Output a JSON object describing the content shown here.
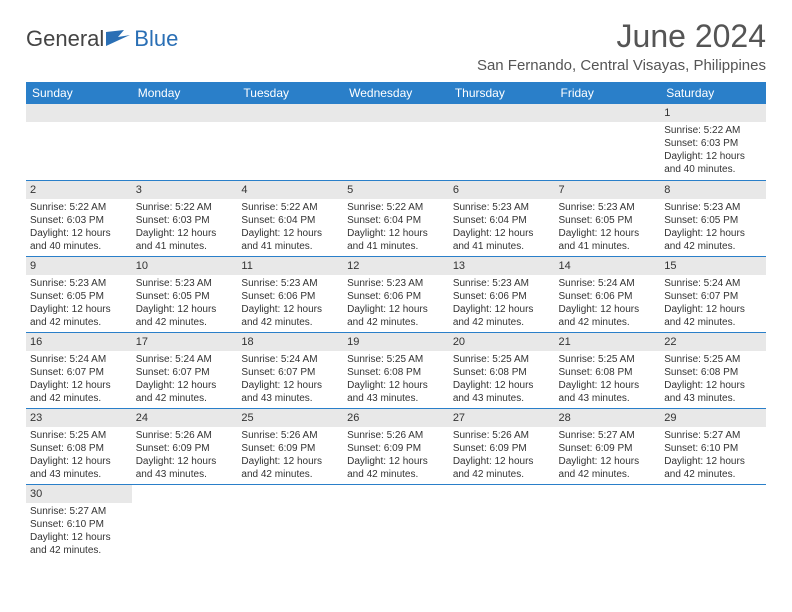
{
  "logo": {
    "textA": "General",
    "textB": "Blue"
  },
  "header": {
    "monthTitle": "June 2024",
    "location": "San Fernando, Central Visayas, Philippines"
  },
  "colors": {
    "headerBg": "#2a7fc9",
    "headerText": "#ffffff",
    "dayNumBg": "#e8e8e8",
    "borderColor": "#2a7fc9",
    "logoBlue": "#2a6fb5",
    "textColor": "#333333"
  },
  "weekdays": [
    "Sunday",
    "Monday",
    "Tuesday",
    "Wednesday",
    "Thursday",
    "Friday",
    "Saturday"
  ],
  "grid": {
    "rows": 6,
    "cols": 7,
    "firstDayCol": 6,
    "daysInMonth": 30
  },
  "days": {
    "1": {
      "sunrise": "5:22 AM",
      "sunset": "6:03 PM",
      "daylight": "12 hours and 40 minutes."
    },
    "2": {
      "sunrise": "5:22 AM",
      "sunset": "6:03 PM",
      "daylight": "12 hours and 40 minutes."
    },
    "3": {
      "sunrise": "5:22 AM",
      "sunset": "6:03 PM",
      "daylight": "12 hours and 41 minutes."
    },
    "4": {
      "sunrise": "5:22 AM",
      "sunset": "6:04 PM",
      "daylight": "12 hours and 41 minutes."
    },
    "5": {
      "sunrise": "5:22 AM",
      "sunset": "6:04 PM",
      "daylight": "12 hours and 41 minutes."
    },
    "6": {
      "sunrise": "5:23 AM",
      "sunset": "6:04 PM",
      "daylight": "12 hours and 41 minutes."
    },
    "7": {
      "sunrise": "5:23 AM",
      "sunset": "6:05 PM",
      "daylight": "12 hours and 41 minutes."
    },
    "8": {
      "sunrise": "5:23 AM",
      "sunset": "6:05 PM",
      "daylight": "12 hours and 42 minutes."
    },
    "9": {
      "sunrise": "5:23 AM",
      "sunset": "6:05 PM",
      "daylight": "12 hours and 42 minutes."
    },
    "10": {
      "sunrise": "5:23 AM",
      "sunset": "6:05 PM",
      "daylight": "12 hours and 42 minutes."
    },
    "11": {
      "sunrise": "5:23 AM",
      "sunset": "6:06 PM",
      "daylight": "12 hours and 42 minutes."
    },
    "12": {
      "sunrise": "5:23 AM",
      "sunset": "6:06 PM",
      "daylight": "12 hours and 42 minutes."
    },
    "13": {
      "sunrise": "5:23 AM",
      "sunset": "6:06 PM",
      "daylight": "12 hours and 42 minutes."
    },
    "14": {
      "sunrise": "5:24 AM",
      "sunset": "6:06 PM",
      "daylight": "12 hours and 42 minutes."
    },
    "15": {
      "sunrise": "5:24 AM",
      "sunset": "6:07 PM",
      "daylight": "12 hours and 42 minutes."
    },
    "16": {
      "sunrise": "5:24 AM",
      "sunset": "6:07 PM",
      "daylight": "12 hours and 42 minutes."
    },
    "17": {
      "sunrise": "5:24 AM",
      "sunset": "6:07 PM",
      "daylight": "12 hours and 42 minutes."
    },
    "18": {
      "sunrise": "5:24 AM",
      "sunset": "6:07 PM",
      "daylight": "12 hours and 43 minutes."
    },
    "19": {
      "sunrise": "5:25 AM",
      "sunset": "6:08 PM",
      "daylight": "12 hours and 43 minutes."
    },
    "20": {
      "sunrise": "5:25 AM",
      "sunset": "6:08 PM",
      "daylight": "12 hours and 43 minutes."
    },
    "21": {
      "sunrise": "5:25 AM",
      "sunset": "6:08 PM",
      "daylight": "12 hours and 43 minutes."
    },
    "22": {
      "sunrise": "5:25 AM",
      "sunset": "6:08 PM",
      "daylight": "12 hours and 43 minutes."
    },
    "23": {
      "sunrise": "5:25 AM",
      "sunset": "6:08 PM",
      "daylight": "12 hours and 43 minutes."
    },
    "24": {
      "sunrise": "5:26 AM",
      "sunset": "6:09 PM",
      "daylight": "12 hours and 43 minutes."
    },
    "25": {
      "sunrise": "5:26 AM",
      "sunset": "6:09 PM",
      "daylight": "12 hours and 42 minutes."
    },
    "26": {
      "sunrise": "5:26 AM",
      "sunset": "6:09 PM",
      "daylight": "12 hours and 42 minutes."
    },
    "27": {
      "sunrise": "5:26 AM",
      "sunset": "6:09 PM",
      "daylight": "12 hours and 42 minutes."
    },
    "28": {
      "sunrise": "5:27 AM",
      "sunset": "6:09 PM",
      "daylight": "12 hours and 42 minutes."
    },
    "29": {
      "sunrise": "5:27 AM",
      "sunset": "6:10 PM",
      "daylight": "12 hours and 42 minutes."
    },
    "30": {
      "sunrise": "5:27 AM",
      "sunset": "6:10 PM",
      "daylight": "12 hours and 42 minutes."
    }
  },
  "labels": {
    "sunrise": "Sunrise: ",
    "sunset": "Sunset: ",
    "daylight": "Daylight: "
  }
}
